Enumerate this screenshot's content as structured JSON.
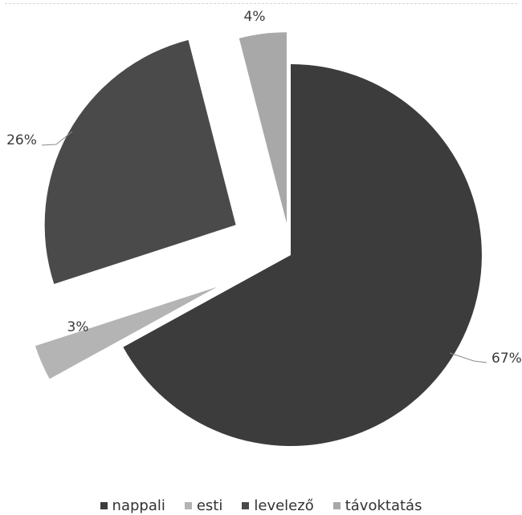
{
  "chart_data": {
    "type": "pie",
    "exploded": true,
    "legend_position": "bottom",
    "categories": [
      "nappali",
      "esti",
      "levelező",
      "távoktatás"
    ],
    "values": [
      67,
      3,
      26,
      4
    ],
    "labels": [
      "67%",
      "3%",
      "26%",
      "4%"
    ],
    "colors": [
      "#3c3c3c",
      "#b4b4b4",
      "#4a4a4a",
      "#a8a8a8"
    ]
  }
}
